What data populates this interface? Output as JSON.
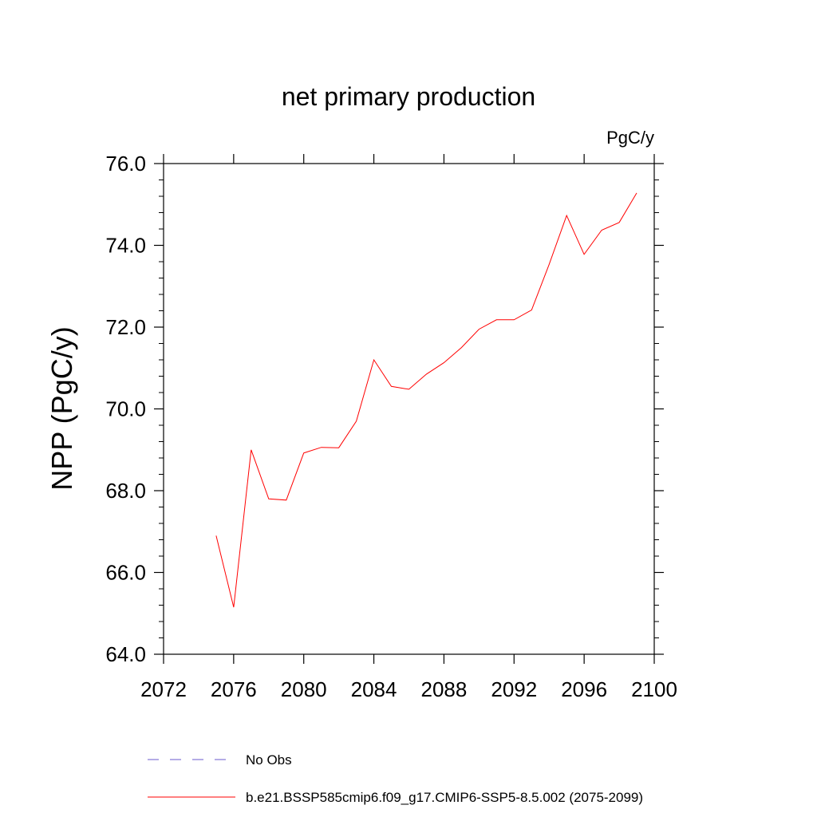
{
  "chart_data": {
    "type": "line",
    "title": "net primary production",
    "units_label": "PgC/y",
    "xlabel": "",
    "ylabel": "NPP  (PgC/y)",
    "xlim": [
      2072,
      2100
    ],
    "ylim": [
      64.0,
      76.0
    ],
    "x_ticks": [
      2072,
      2076,
      2080,
      2084,
      2088,
      2092,
      2096,
      2100
    ],
    "x_tick_labels": [
      "2072",
      "2076",
      "2080",
      "2084",
      "2088",
      "2092",
      "2096",
      "2100"
    ],
    "y_ticks": [
      64,
      66,
      68,
      70,
      72,
      74,
      76
    ],
    "y_tick_labels": [
      "64.0",
      "66.0",
      "68.0",
      "70.0",
      "72.0",
      "74.0",
      "76.0"
    ],
    "grid": false,
    "legend_position": "bottom",
    "series": [
      {
        "name": "No Obs",
        "color": "#6a5acd",
        "dash": "dashed",
        "x": [],
        "y": []
      },
      {
        "name": "b.e21.BSSP585cmip6.f09_g17.CMIP6-SSP5-8.5.002 (2075-2099)",
        "color": "#ff0000",
        "dash": "solid",
        "x": [
          2075,
          2076,
          2077,
          2078,
          2079,
          2080,
          2081,
          2082,
          2083,
          2084,
          2085,
          2086,
          2087,
          2088,
          2089,
          2090,
          2091,
          2092,
          2093,
          2094,
          2095,
          2096,
          2097,
          2098,
          2099
        ],
        "y": [
          66.9,
          65.15,
          69.0,
          67.8,
          67.77,
          68.92,
          69.06,
          69.05,
          69.7,
          71.2,
          70.55,
          70.48,
          70.85,
          71.13,
          71.5,
          71.95,
          72.18,
          72.18,
          72.42,
          73.53,
          74.73,
          73.78,
          74.37,
          74.56,
          75.28
        ]
      }
    ]
  }
}
